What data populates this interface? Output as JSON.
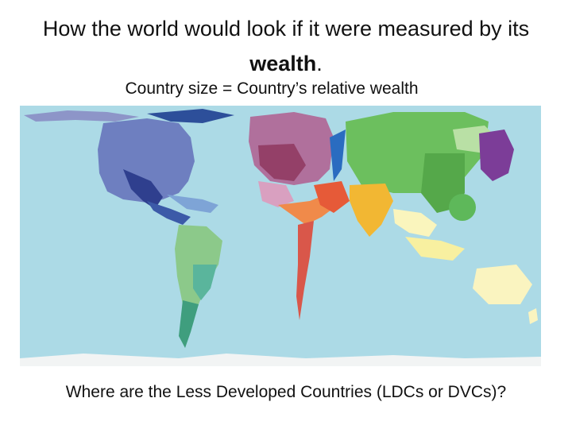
{
  "title": {
    "text_before": "How the world would look if it were measured by its",
    "emphasis": "wealth",
    "text_after": "."
  },
  "subtitle": "Country size = Country’s relative wealth",
  "question": "Where are the Less Developed Countries (LDCs or DVCs)?"
}
